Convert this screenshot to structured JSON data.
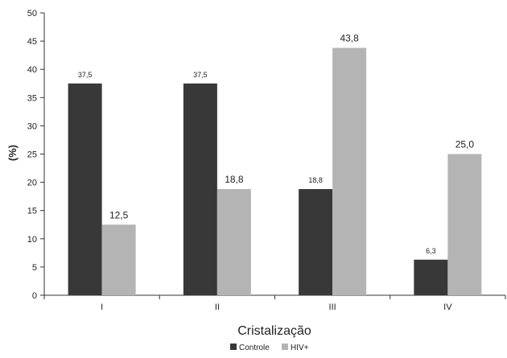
{
  "chart_data": {
    "type": "bar",
    "categories": [
      "I",
      "II",
      "III",
      "IV"
    ],
    "series": [
      {
        "name": "Controle",
        "values": [
          37.5,
          37.5,
          18.8,
          6.3
        ],
        "labels": [
          "37,5",
          "37,5",
          "18,8",
          "6,3"
        ],
        "color": "#383838"
      },
      {
        "name": "HIV+",
        "values": [
          12.5,
          18.8,
          43.8,
          25.0
        ],
        "labels": [
          "12,5",
          "18,8",
          "43,8",
          "25,0"
        ],
        "color": "#b4b4b4"
      }
    ],
    "xlabel": "Cristalização",
    "ylabel": "(%)",
    "ylim": [
      0,
      50
    ],
    "yticks": [
      0,
      5,
      10,
      15,
      20,
      25,
      30,
      35,
      40,
      45,
      50
    ],
    "grid": false,
    "legend_position": "bottom"
  }
}
